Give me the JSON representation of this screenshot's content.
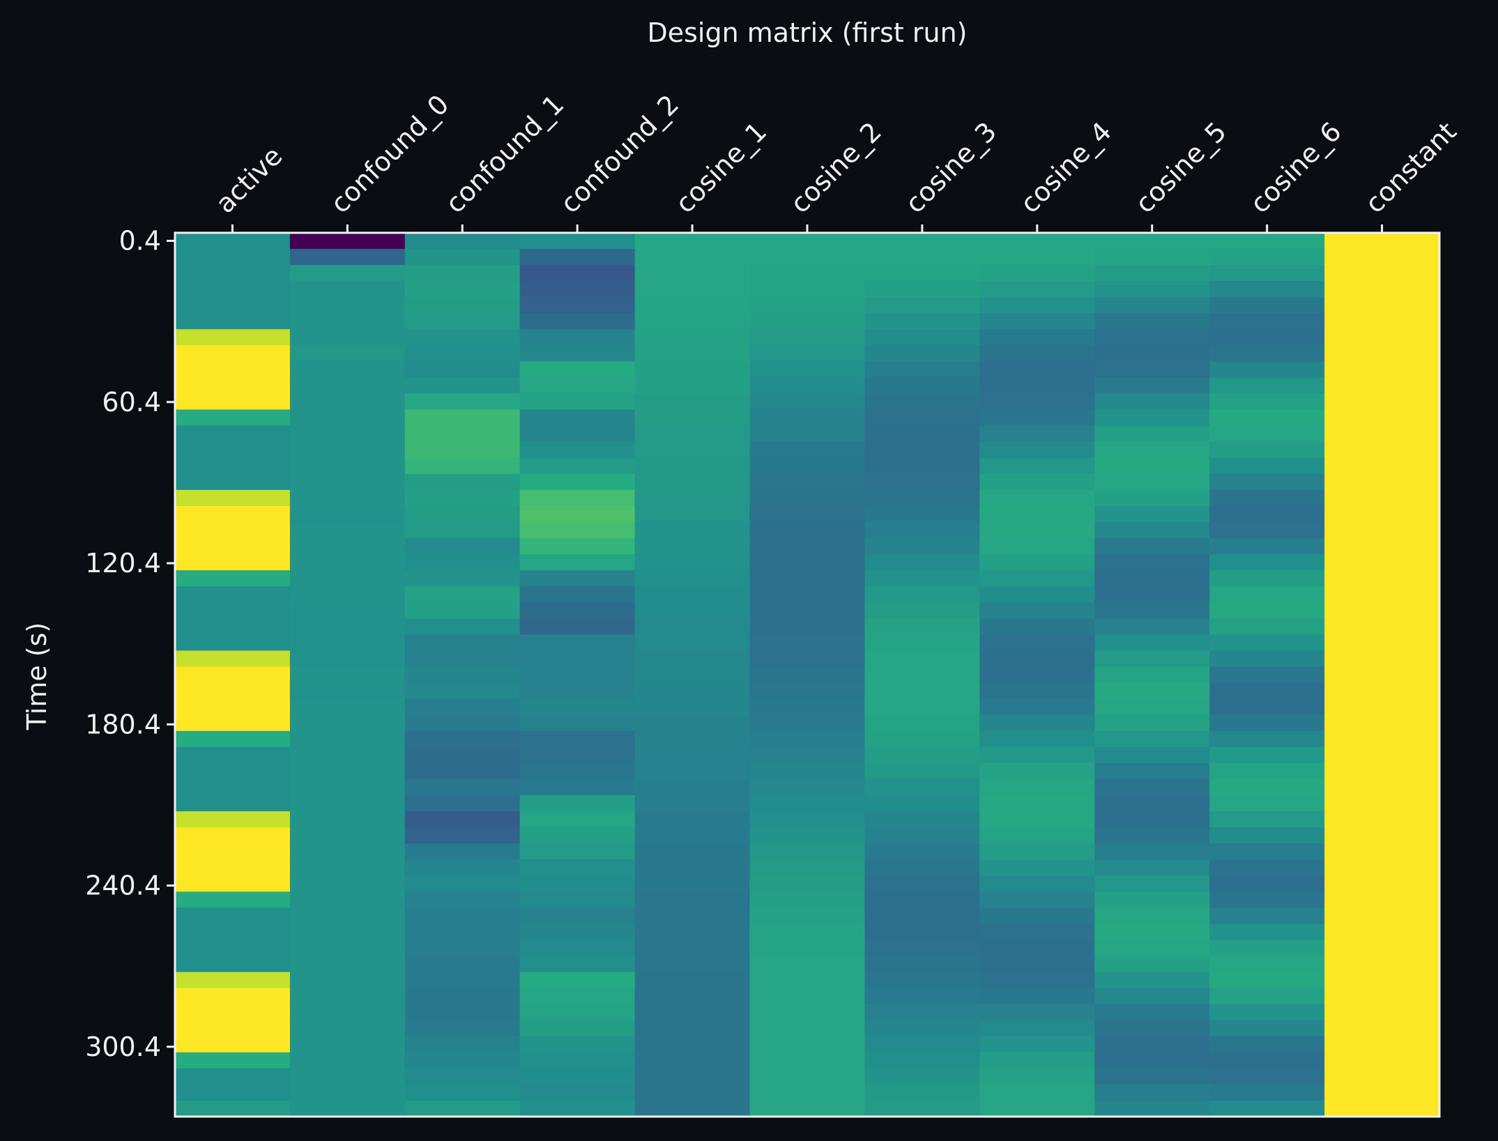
{
  "chart_data": {
    "type": "heatmap",
    "title": "Design matrix (first run)",
    "ylabel": "Time (s)",
    "xlabel": "",
    "colormap": "viridis",
    "columns": [
      "active",
      "confound_0",
      "confound_1",
      "confound_2",
      "cosine_1",
      "cosine_2",
      "cosine_3",
      "cosine_4",
      "cosine_5",
      "cosine_6",
      "constant"
    ],
    "y_ticks": [
      0.4,
      60.4,
      120.4,
      180.4,
      240.4,
      300.4
    ],
    "y_tick_labels": [
      "0.4",
      "60.4",
      "120.4",
      "180.4",
      "240.4",
      "300.4"
    ],
    "y_range": [
      0.4,
      329.4
    ],
    "n_scans": 55,
    "scan_interval_s": 6,
    "grid": false,
    "notes_values": "normalized column values (0 = min color, 1 = max color)",
    "values": {
      "active": [
        0.5,
        0.5,
        0.5,
        0.5,
        0.5,
        0.5,
        0.92,
        1,
        1,
        1,
        1,
        0.62,
        0.5,
        0.5,
        0.5,
        0.5,
        0.92,
        1,
        1,
        1,
        1,
        0.62,
        0.5,
        0.5,
        0.5,
        0.5,
        0.92,
        1,
        1,
        1,
        1,
        0.62,
        0.5,
        0.5,
        0.5,
        0.5,
        0.92,
        1,
        1,
        1,
        1,
        0.62,
        0.5,
        0.5,
        0.5,
        0.5,
        0.92,
        1,
        1,
        1,
        1,
        0.62,
        0.5,
        0.5,
        0.55
      ],
      "confound_0": [
        0.0,
        0.33,
        0.55,
        0.52,
        0.52,
        0.52,
        0.52,
        0.53,
        0.52,
        0.52,
        0.52,
        0.52,
        0.52,
        0.52,
        0.52,
        0.52,
        0.52,
        0.51,
        0.52,
        0.52,
        0.52,
        0.52,
        0.52,
        0.51,
        0.51,
        0.51,
        0.51,
        0.52,
        0.51,
        0.52,
        0.52,
        0.52,
        0.52,
        0.52,
        0.52,
        0.52,
        0.52,
        0.52,
        0.52,
        0.52,
        0.52,
        0.52,
        0.52,
        0.52,
        0.52,
        0.52,
        0.52,
        0.52,
        0.52,
        0.52,
        0.52,
        0.52,
        0.52,
        0.52,
        0.52
      ],
      "confound_1": [
        0.48,
        0.52,
        0.56,
        0.57,
        0.56,
        0.55,
        0.52,
        0.5,
        0.49,
        0.52,
        0.6,
        0.68,
        0.68,
        0.68,
        0.66,
        0.56,
        0.57,
        0.56,
        0.55,
        0.48,
        0.5,
        0.52,
        0.58,
        0.57,
        0.5,
        0.45,
        0.44,
        0.46,
        0.47,
        0.43,
        0.42,
        0.37,
        0.36,
        0.36,
        0.4,
        0.37,
        0.3,
        0.32,
        0.42,
        0.46,
        0.48,
        0.44,
        0.43,
        0.43,
        0.43,
        0.42,
        0.42,
        0.41,
        0.41,
        0.42,
        0.45,
        0.46,
        0.48,
        0.5,
        0.55
      ],
      "confound_2": [
        0.5,
        0.35,
        0.28,
        0.3,
        0.32,
        0.36,
        0.45,
        0.47,
        0.62,
        0.6,
        0.58,
        0.46,
        0.46,
        0.5,
        0.55,
        0.62,
        0.7,
        0.72,
        0.7,
        0.66,
        0.6,
        0.45,
        0.39,
        0.36,
        0.34,
        0.44,
        0.44,
        0.44,
        0.44,
        0.46,
        0.44,
        0.38,
        0.38,
        0.4,
        0.42,
        0.56,
        0.6,
        0.57,
        0.55,
        0.5,
        0.49,
        0.48,
        0.44,
        0.46,
        0.48,
        0.5,
        0.62,
        0.6,
        0.59,
        0.56,
        0.52,
        0.5,
        0.49,
        0.48,
        0.5
      ],
      "cosine_1": [
        0.6,
        0.6,
        0.6,
        0.6,
        0.59,
        0.59,
        0.58,
        0.58,
        0.57,
        0.57,
        0.56,
        0.56,
        0.55,
        0.55,
        0.54,
        0.54,
        0.53,
        0.53,
        0.52,
        0.52,
        0.51,
        0.5,
        0.49,
        0.49,
        0.48,
        0.48,
        0.47,
        0.47,
        0.46,
        0.46,
        0.45,
        0.45,
        0.44,
        0.44,
        0.43,
        0.43,
        0.42,
        0.42,
        0.41,
        0.41,
        0.41,
        0.4,
        0.4,
        0.4,
        0.4,
        0.4,
        0.39,
        0.39,
        0.39,
        0.39,
        0.39,
        0.39,
        0.39,
        0.39,
        0.39
      ],
      "cosine_2": [
        0.6,
        0.6,
        0.59,
        0.59,
        0.58,
        0.57,
        0.55,
        0.53,
        0.51,
        0.49,
        0.47,
        0.45,
        0.44,
        0.42,
        0.41,
        0.4,
        0.39,
        0.38,
        0.37,
        0.37,
        0.37,
        0.37,
        0.37,
        0.37,
        0.37,
        0.38,
        0.38,
        0.39,
        0.4,
        0.41,
        0.42,
        0.43,
        0.44,
        0.46,
        0.47,
        0.49,
        0.5,
        0.52,
        0.53,
        0.55,
        0.56,
        0.57,
        0.58,
        0.59,
        0.59,
        0.6,
        0.6,
        0.6,
        0.6,
        0.6,
        0.6,
        0.6,
        0.6,
        0.6,
        0.6
      ],
      "cosine_3": [
        0.6,
        0.6,
        0.59,
        0.57,
        0.55,
        0.52,
        0.49,
        0.46,
        0.43,
        0.41,
        0.39,
        0.38,
        0.37,
        0.37,
        0.37,
        0.38,
        0.39,
        0.41,
        0.43,
        0.45,
        0.48,
        0.51,
        0.54,
        0.56,
        0.58,
        0.59,
        0.6,
        0.6,
        0.6,
        0.6,
        0.59,
        0.58,
        0.56,
        0.54,
        0.51,
        0.49,
        0.46,
        0.44,
        0.42,
        0.4,
        0.38,
        0.37,
        0.37,
        0.37,
        0.38,
        0.39,
        0.4,
        0.42,
        0.44,
        0.46,
        0.48,
        0.5,
        0.52,
        0.54,
        0.55
      ],
      "cosine_4": [
        0.6,
        0.6,
        0.58,
        0.55,
        0.51,
        0.46,
        0.42,
        0.39,
        0.37,
        0.37,
        0.38,
        0.4,
        0.44,
        0.48,
        0.53,
        0.57,
        0.6,
        0.61,
        0.61,
        0.6,
        0.57,
        0.53,
        0.49,
        0.45,
        0.41,
        0.38,
        0.37,
        0.37,
        0.39,
        0.42,
        0.46,
        0.5,
        0.54,
        0.58,
        0.6,
        0.61,
        0.61,
        0.59,
        0.56,
        0.52,
        0.48,
        0.44,
        0.41,
        0.38,
        0.37,
        0.37,
        0.38,
        0.41,
        0.44,
        0.48,
        0.52,
        0.56,
        0.58,
        0.6,
        0.6
      ],
      "cosine_5": [
        0.6,
        0.59,
        0.56,
        0.52,
        0.46,
        0.41,
        0.38,
        0.37,
        0.38,
        0.42,
        0.47,
        0.52,
        0.57,
        0.6,
        0.61,
        0.6,
        0.57,
        0.52,
        0.47,
        0.42,
        0.38,
        0.37,
        0.37,
        0.4,
        0.45,
        0.5,
        0.55,
        0.59,
        0.61,
        0.6,
        0.58,
        0.53,
        0.48,
        0.43,
        0.39,
        0.37,
        0.37,
        0.39,
        0.43,
        0.48,
        0.53,
        0.57,
        0.6,
        0.61,
        0.6,
        0.57,
        0.52,
        0.47,
        0.42,
        0.39,
        0.37,
        0.37,
        0.39,
        0.43,
        0.46
      ],
      "cosine_6": [
        0.6,
        0.58,
        0.54,
        0.47,
        0.41,
        0.38,
        0.37,
        0.4,
        0.46,
        0.53,
        0.58,
        0.61,
        0.6,
        0.56,
        0.5,
        0.44,
        0.39,
        0.37,
        0.38,
        0.43,
        0.5,
        0.56,
        0.6,
        0.61,
        0.58,
        0.52,
        0.46,
        0.4,
        0.37,
        0.37,
        0.41,
        0.47,
        0.54,
        0.59,
        0.61,
        0.6,
        0.55,
        0.49,
        0.43,
        0.39,
        0.37,
        0.39,
        0.44,
        0.51,
        0.57,
        0.6,
        0.61,
        0.58,
        0.52,
        0.46,
        0.4,
        0.37,
        0.38,
        0.42,
        0.48
      ],
      "constant": [
        1,
        1,
        1,
        1,
        1,
        1,
        1,
        1,
        1,
        1,
        1,
        1,
        1,
        1,
        1,
        1,
        1,
        1,
        1,
        1,
        1,
        1,
        1,
        1,
        1,
        1,
        1,
        1,
        1,
        1,
        1,
        1,
        1,
        1,
        1,
        1,
        1,
        1,
        1,
        1,
        1,
        1,
        1,
        1,
        1,
        1,
        1,
        1,
        1,
        1,
        1,
        1,
        1,
        1,
        1
      ]
    }
  }
}
